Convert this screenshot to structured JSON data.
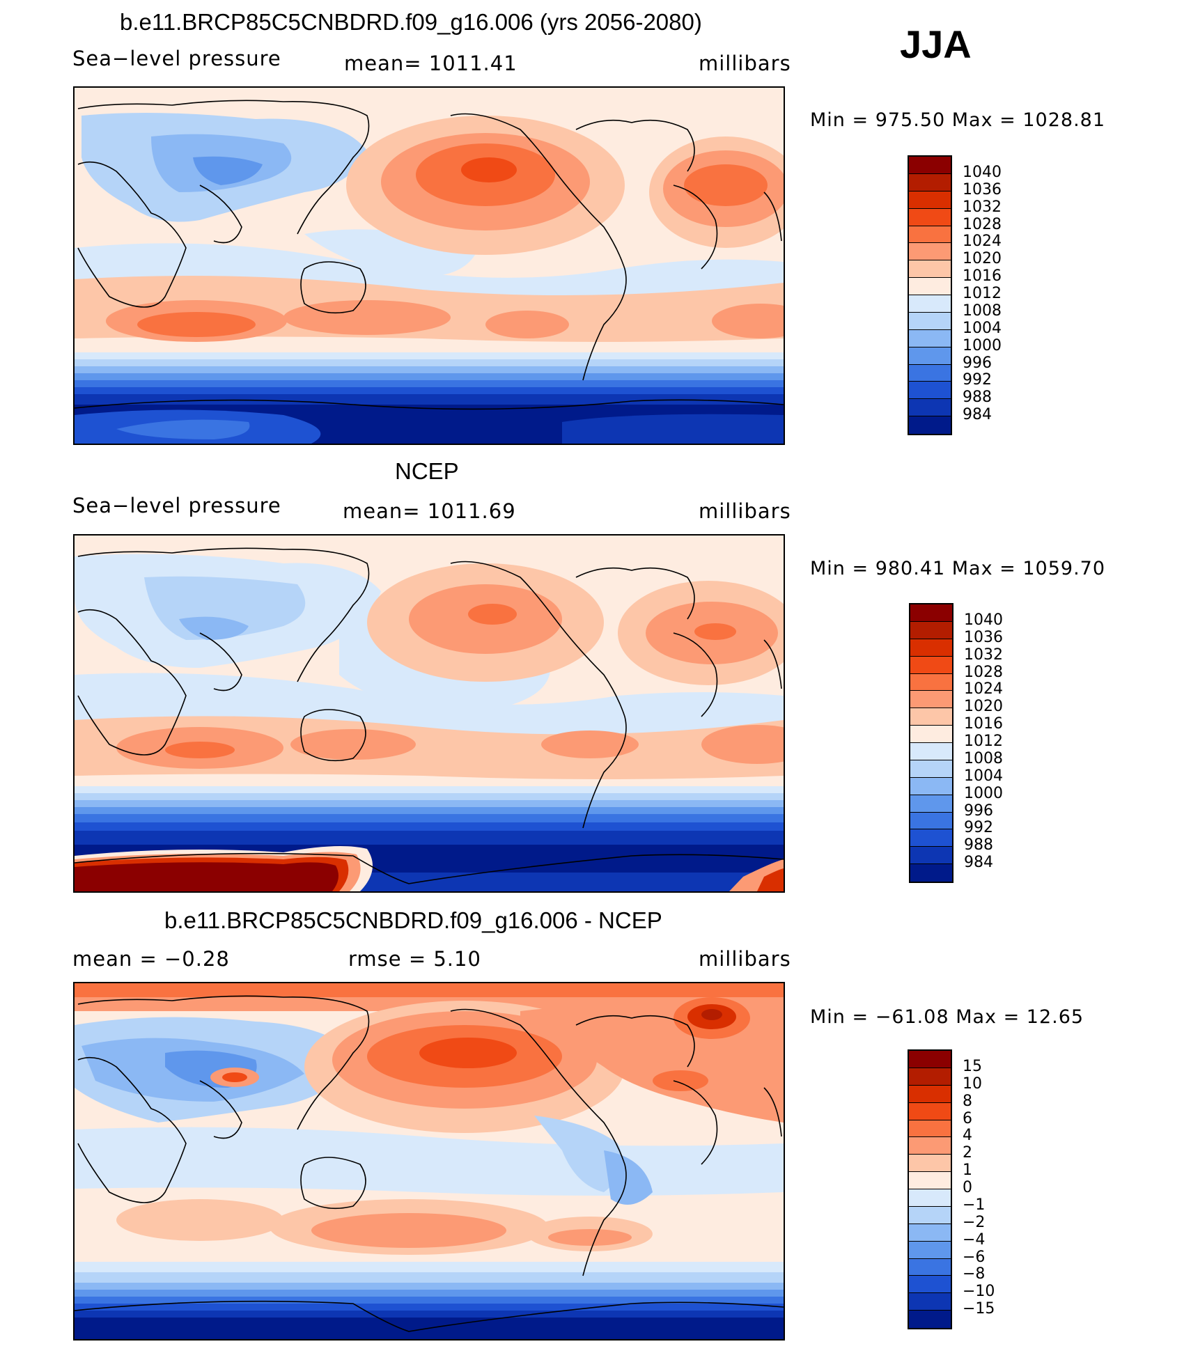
{
  "season": "JJA",
  "colors": {
    "abs": [
      "#8b0000",
      "#b31d00",
      "#d92f00",
      "#f04a15",
      "#f97240",
      "#fc9a74",
      "#fdc6a8",
      "#feece0",
      "#d8e9fb",
      "#b5d4f8",
      "#8bb8f4",
      "#5f97ec",
      "#3a74e2",
      "#1e52d2",
      "#0d36b3",
      "#001a8a"
    ],
    "diff": [
      "#8b0000",
      "#b31d00",
      "#d92f00",
      "#f04a15",
      "#f97240",
      "#fc9a74",
      "#fdc6a8",
      "#feece0",
      "#d8e9fb",
      "#b5d4f8",
      "#8bb8f4",
      "#5f97ec",
      "#3a74e2",
      "#1e52d2",
      "#0d36b3",
      "#001a8a"
    ]
  },
  "panels": [
    {
      "title": "b.e11.BRCP85C5CNBDRD.f09_g16.006 (yrs 2056-2080)",
      "left": "Sea−level pressure",
      "center": "mean=  1011.41",
      "right": "millibars",
      "minmax": "Min  =  975.50  Max  =  1028.81",
      "kind": "model",
      "levels": [
        "1040",
        "1036",
        "1032",
        "1028",
        "1024",
        "1020",
        "1016",
        "1012",
        "1008",
        "1004",
        "1000",
        "996",
        "992",
        "988",
        "984"
      ]
    },
    {
      "title": "NCEP",
      "left": "Sea−level pressure",
      "center": "mean=  1011.69",
      "right": "millibars",
      "minmax": "Min  =  980.41  Max  =  1059.70",
      "kind": "obs",
      "levels": [
        "1040",
        "1036",
        "1032",
        "1028",
        "1024",
        "1020",
        "1016",
        "1012",
        "1008",
        "1004",
        "1000",
        "996",
        "992",
        "988",
        "984"
      ]
    },
    {
      "title": "b.e11.BRCP85C5CNBDRD.f09_g16.006 - NCEP",
      "left": "mean  =    −0.28",
      "center": "rmse  =     5.10",
      "right": "millibars",
      "minmax": "Min  =  −61.08  Max  =     12.65",
      "kind": "diff",
      "levels": [
        "15",
        "10",
        "8",
        "6",
        "4",
        "2",
        "1",
        "0",
        "−1",
        "−2",
        "−4",
        "−6",
        "−8",
        "−10",
        "−15"
      ]
    }
  ]
}
